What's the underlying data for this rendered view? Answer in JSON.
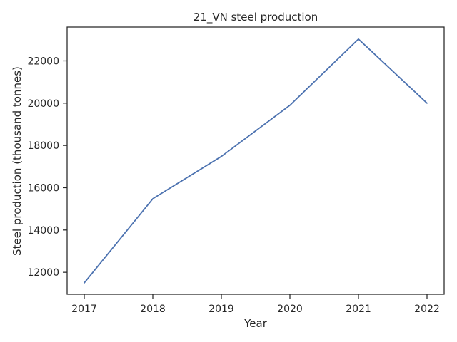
{
  "chart_data": {
    "type": "line",
    "title": "21_VN steel production",
    "xlabel": "Year",
    "ylabel": "Steel production (thousand tonnes)",
    "x": [
      2017,
      2018,
      2019,
      2020,
      2021,
      2022
    ],
    "series": [
      {
        "values": [
          11500,
          15480,
          17480,
          19900,
          23030,
          20000
        ],
        "color": "#4c72b0"
      }
    ],
    "xticks": [
      "2017",
      "2018",
      "2019",
      "2020",
      "2021",
      "2022"
    ],
    "yticks": [
      "12000",
      "14000",
      "16000",
      "18000",
      "20000",
      "22000"
    ],
    "ylim": [
      10960,
      23600
    ],
    "grid": false,
    "legend": "none"
  }
}
